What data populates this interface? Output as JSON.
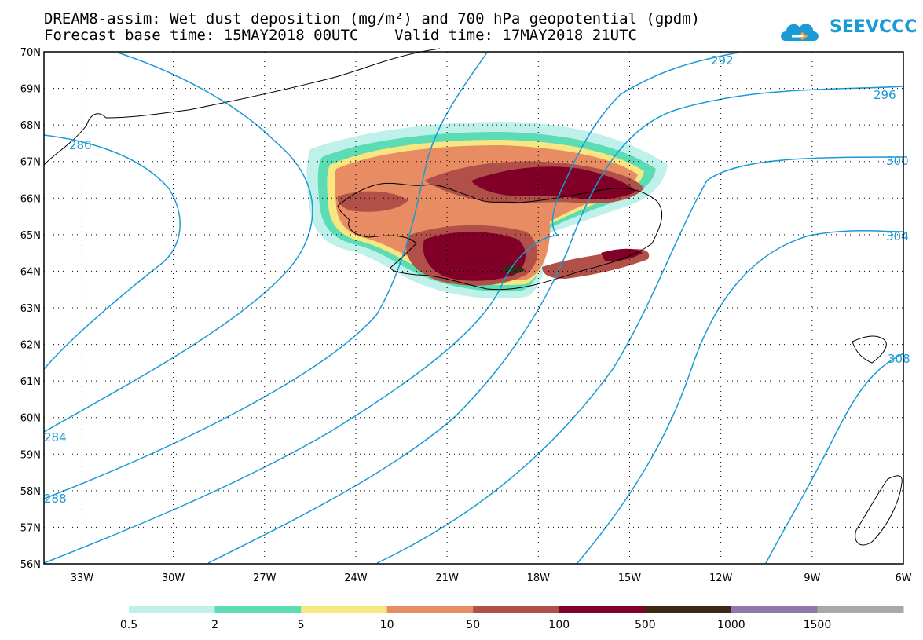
{
  "header": {
    "title_line1": "DREAM8-assim: Wet dust deposition (mg/m²) and 700 hPa geopotential (gpdm)",
    "title_line2": "Forecast base time: 15MAY2018 00UTC    Valid time: 17MAY2018 21UTC",
    "logo_text": "SEEVCCC"
  },
  "map": {
    "lat_labels": [
      "70N",
      "69N",
      "68N",
      "67N",
      "66N",
      "65N",
      "64N",
      "63N",
      "62N",
      "61N",
      "60N",
      "59N",
      "58N",
      "57N",
      "56N"
    ],
    "lon_labels": [
      "33W",
      "30W",
      "27W",
      "24W",
      "21W",
      "18W",
      "15W",
      "12W",
      "9W",
      "6W"
    ],
    "lat_range": [
      56,
      70
    ],
    "lon_range": [
      -34.25,
      -6
    ],
    "contour_labels": [
      "280",
      "292",
      "296",
      "300",
      "304",
      "308",
      "284",
      "288"
    ],
    "contour_color": "#1a9ad6",
    "coastline_color": "#000000",
    "grid": "dotted"
  },
  "colorbar": {
    "boundaries": [
      "0.5",
      "2",
      "5",
      "10",
      "50",
      "100",
      "500",
      "1000",
      "1500"
    ],
    "colors": [
      "#bff0ea",
      "#5cdcb4",
      "#f8e680",
      "#e88c64",
      "#b05048",
      "#800028",
      "#3c2814",
      "#9078a8",
      "#a8a8a8"
    ]
  }
}
